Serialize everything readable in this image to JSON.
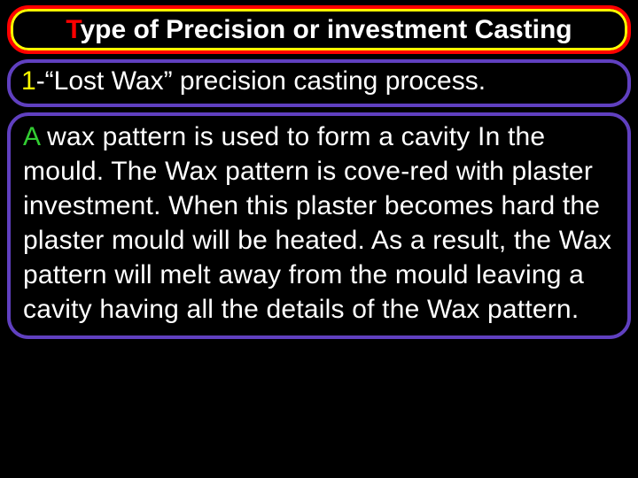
{
  "title": {
    "accent_letter": "T",
    "rest": "ype of Precision or investment Casting",
    "border_outer": "#ff0000",
    "border_inner": "#ffff00",
    "text_color": "#ffffff",
    "accent_color": "#ff0000",
    "fontsize": 30,
    "fontweight": "bold"
  },
  "subtitle": {
    "accent_text": "1",
    "rest": "-“Lost Wax” precision casting process.",
    "border_color": "#6040c0",
    "text_color": "#ffffff",
    "accent_color": "#ffff00",
    "fontsize": 30
  },
  "body": {
    "accent_letter": "A",
    "rest": " wax pattern is used to form a cavity In the mould. The Wax pattern is cove-red with plaster investment. When this plaster  becomes  hard  the plaster mould  will  be heated. As a result, the Wax  pattern  will  melt  away from the mould  leaving  a  cavity  having all the details  of the Wax  pattern.",
    "border_color": "#6040c0",
    "text_color": "#ffffff",
    "accent_color": "#32cd32",
    "fontsize": 30
  },
  "background_color": "#000000",
  "border_radius": 24
}
